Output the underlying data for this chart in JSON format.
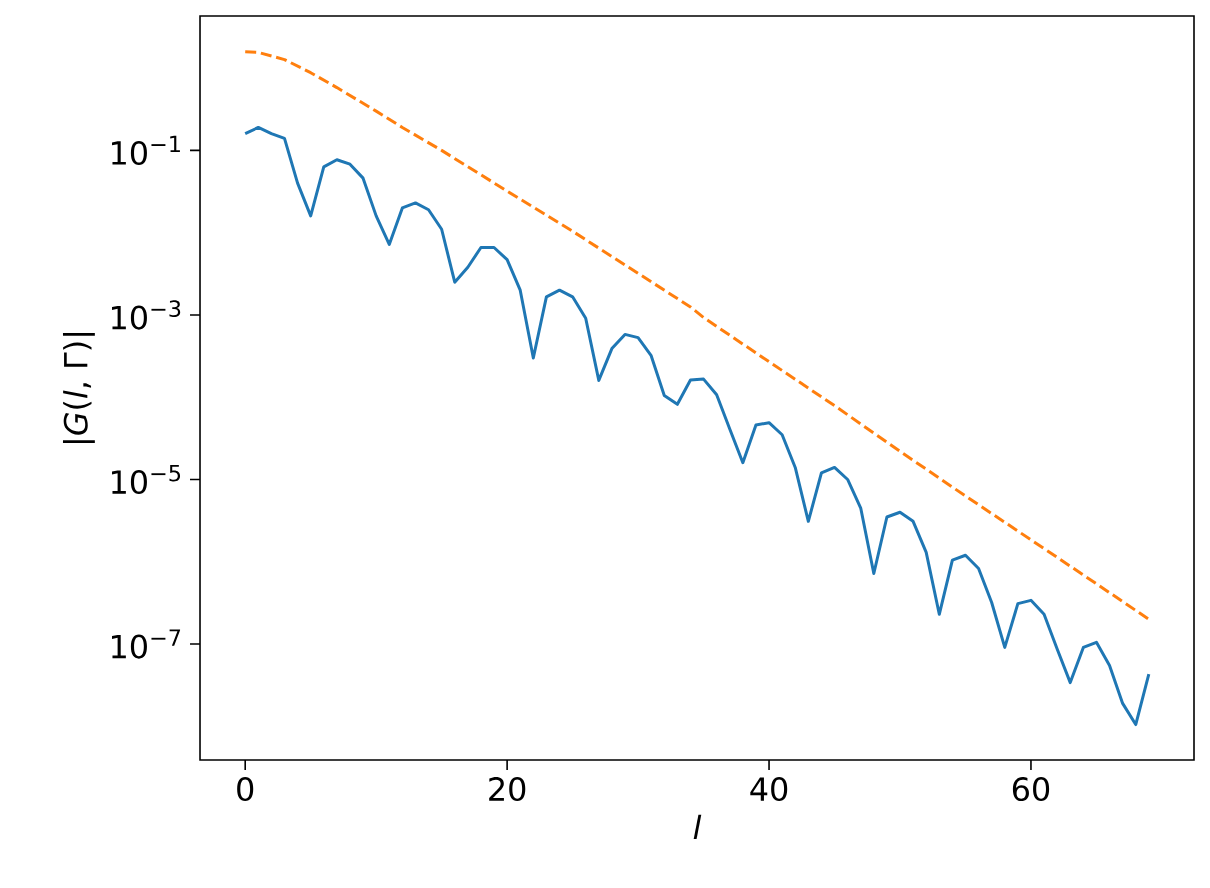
{
  "chart_data": {
    "type": "line",
    "xlabel": "*l*",
    "ylabel": "|*G*(*l*, Γ)|",
    "log": "y",
    "grid": false,
    "marker": "none",
    "xlim": [
      -3.45,
      72.45
    ],
    "ylim": [
      3.9e-09,
      4.3
    ],
    "xticks": [
      0,
      20,
      40,
      60
    ],
    "yticks": [
      {
        "value": 1e-07,
        "label": "10$^{−7}$"
      },
      {
        "value": 1e-05,
        "label": "10$^{−5}$"
      },
      {
        "value": 0.001,
        "label": "10$^{−3}$"
      },
      {
        "value": 0.1,
        "label": "10$^{−1}$"
      }
    ],
    "series": [
      {
        "color": "#1f77b4",
        "line_style": "solid",
        "x": [
          0,
          1,
          2,
          3,
          4,
          5,
          6,
          7,
          8,
          9,
          10,
          11,
          12,
          13,
          14,
          15,
          16,
          17,
          18,
          19,
          20,
          21,
          22,
          23,
          24,
          25,
          26,
          27,
          28,
          29,
          30,
          31,
          32,
          33,
          34,
          35,
          36,
          37,
          38,
          39,
          40,
          41,
          42,
          43,
          44,
          45,
          46,
          47,
          48,
          49,
          50,
          51,
          52,
          53,
          54,
          55,
          56,
          57,
          58,
          59,
          60,
          61,
          62,
          63,
          64,
          65,
          66,
          67,
          68,
          69
        ],
        "values": [
          0.16,
          0.19,
          0.16,
          0.14,
          0.04,
          0.016,
          0.063,
          0.077,
          0.068,
          0.046,
          0.016,
          0.0072,
          0.02,
          0.023,
          0.019,
          0.011,
          0.0025,
          0.0038,
          0.0066,
          0.0066,
          0.0047,
          0.002,
          0.0003,
          0.00166,
          0.002,
          0.00166,
          0.00091,
          0.00016,
          0.00039,
          0.00058,
          0.00053,
          0.00032,
          0.000105,
          8.2e-05,
          0.000162,
          0.000166,
          0.000107,
          4.1e-05,
          1.6e-05,
          4.6e-05,
          4.9e-05,
          3.5e-05,
          1.4e-05,
          3.1e-06,
          1.2e-05,
          1.4e-05,
          1e-05,
          4.5e-06,
          7.2e-07,
          3.5e-06,
          4e-06,
          3.1e-06,
          1.3e-06,
          2.3e-07,
          1.05e-06,
          1.2e-06,
          8.3e-07,
          3.2e-07,
          9.1e-08,
          3.1e-07,
          3.4e-07,
          2.3e-07,
          8.7e-08,
          3.4e-08,
          9.1e-08,
          1.05e-07,
          5.5e-08,
          1.9e-08,
          1.05e-08,
          4.3e-08
        ]
      },
      {
        "color": "#ff7f0e",
        "line_style": "dashed",
        "x": [
          0,
          1,
          3,
          5,
          7,
          10,
          12,
          15,
          20,
          25,
          30,
          34,
          35,
          40,
          45,
          50,
          55,
          60,
          65,
          69
        ],
        "values": [
          1.58,
          1.55,
          1.27,
          0.88,
          0.58,
          0.3,
          0.19,
          0.1,
          0.032,
          0.0104,
          0.0032,
          0.00125,
          0.00093,
          0.00027,
          7.9e-05,
          2.2e-05,
          6.3e-06,
          1.85e-06,
          5.4e-07,
          2e-07
        ]
      }
    ]
  }
}
